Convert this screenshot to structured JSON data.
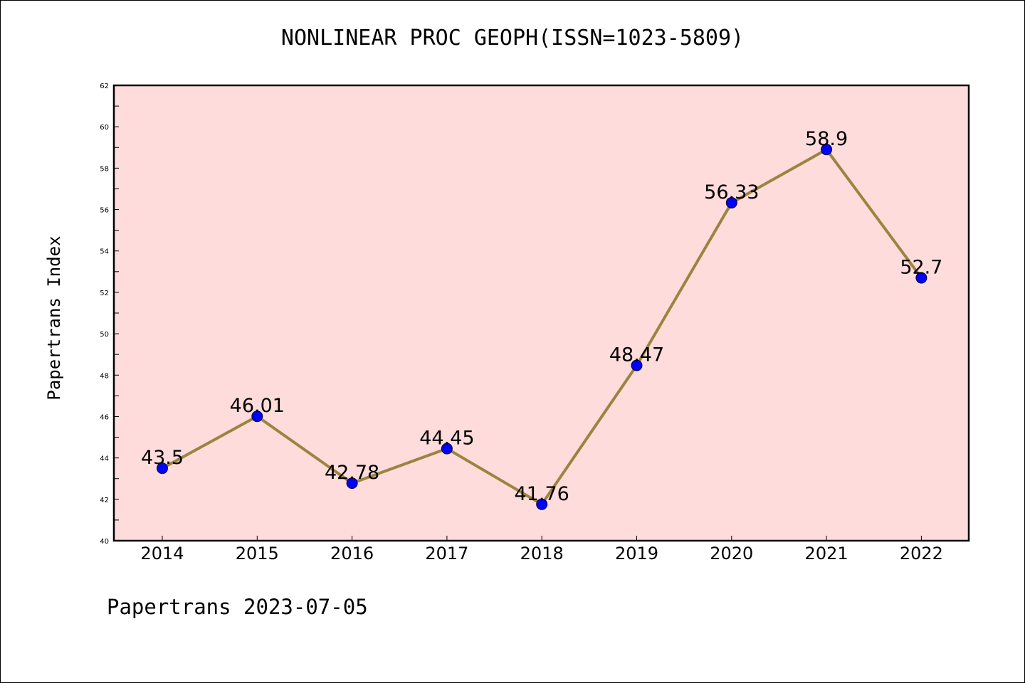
{
  "chart_data": {
    "type": "line",
    "title": "NONLINEAR PROC GEOPH(ISSN=1023-5809)",
    "ylabel": "Papertrans Index",
    "xlabel": "",
    "categories": [
      "2014",
      "2015",
      "2016",
      "2017",
      "2018",
      "2019",
      "2020",
      "2021",
      "2022"
    ],
    "series": [
      {
        "values": [
          43.5,
          46.01,
          42.78,
          44.45,
          41.76,
          48.47,
          56.33,
          58.9,
          52.7
        ],
        "data_labels": [
          "43.5",
          "46.01",
          "42.78",
          "44.45",
          "41.76",
          "48.47",
          "56.33",
          "58.9",
          "52.7"
        ]
      }
    ],
    "ylim": [
      40,
      62
    ],
    "y_ticks": [
      40,
      42,
      44,
      46,
      48,
      50,
      52,
      54,
      56,
      58,
      60,
      62
    ],
    "grid": false,
    "legend": "none",
    "colors": {
      "plot_background": "#fddcdb",
      "line": "#9c8440",
      "marker": "#0000ff"
    }
  },
  "footer": "Papertrans 2023-07-05"
}
